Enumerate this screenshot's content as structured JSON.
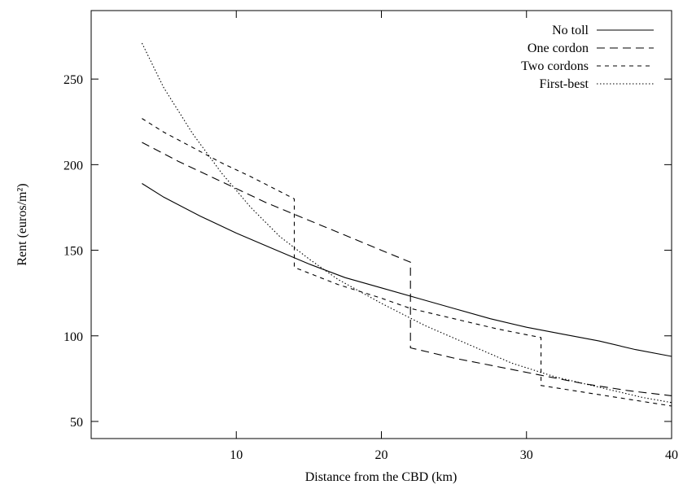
{
  "chart_data": {
    "type": "line",
    "title": "",
    "xlabel": "Distance from the CBD (km)",
    "ylabel": "Rent (euros/m²)",
    "xlim": [
      0,
      40
    ],
    "ylim": [
      40,
      290
    ],
    "xticks": [
      10,
      20,
      30,
      40
    ],
    "yticks": [
      50,
      100,
      150,
      200,
      250
    ],
    "grid": false,
    "legend_position": "top-right",
    "series": [
      {
        "name": "No toll",
        "dash": "solid",
        "x": [
          3.5,
          5,
          7.5,
          10,
          12.5,
          15,
          17.5,
          20,
          22.5,
          25,
          27.5,
          30,
          32.5,
          35,
          37.5,
          40
        ],
        "y": [
          189,
          181,
          170,
          160,
          151,
          142,
          134,
          128,
          122,
          116,
          110,
          105,
          101,
          97,
          92,
          88
        ]
      },
      {
        "name": "One cordon",
        "dash": "long-dash",
        "x": [
          3.5,
          6,
          8,
          10,
          12,
          14,
          16,
          18,
          20,
          22,
          22,
          25,
          28,
          31,
          34,
          37,
          40
        ],
        "y": [
          213,
          202,
          194,
          186,
          178,
          171,
          164,
          157,
          150,
          143,
          93,
          87,
          82,
          77,
          72,
          68,
          65
        ]
      },
      {
        "name": "Two cordons",
        "dash": "short-dash",
        "x": [
          3.5,
          5,
          7,
          9,
          11,
          14,
          14,
          17,
          20,
          22,
          25,
          28,
          31,
          31,
          34,
          37,
          40
        ],
        "y": [
          227,
          219,
          210,
          201,
          193,
          180,
          140,
          130,
          122,
          116,
          110,
          104,
          99,
          71,
          67,
          63,
          59
        ]
      },
      {
        "name": "First-best",
        "dash": "dotted",
        "x": [
          3.5,
          5,
          7,
          9,
          11,
          13,
          15,
          17,
          20,
          23,
          26,
          29,
          32,
          35,
          38,
          40
        ],
        "y": [
          271,
          245,
          218,
          195,
          175,
          158,
          145,
          133,
          119,
          106,
          95,
          84,
          76,
          70,
          64,
          61
        ]
      }
    ]
  }
}
